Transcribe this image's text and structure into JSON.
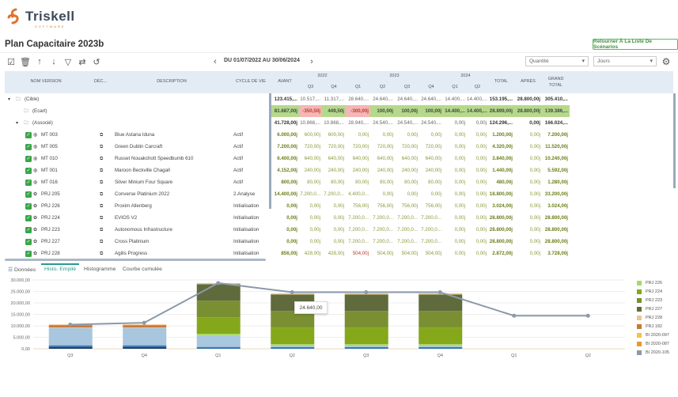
{
  "app": {
    "logo_text": "Triskell",
    "logo_sub": "SOFTWARE",
    "title": "Plan Capacitaire 2023b",
    "back_button": "Retourner À La Liste De Scénarios"
  },
  "toolbar": {
    "period": "DU 01/07/2022 AU 30/06/2024",
    "measure": "Quantité",
    "unit": "Jours"
  },
  "columns": {
    "name": "NOM VERSION",
    "dec": "DÉC...",
    "description": "DESCRIPTION",
    "cycle": "CYCLE DE VIE",
    "avant": "AVANT",
    "y2022": "2022",
    "y2023": "2023",
    "y2024": "2024",
    "q1": "Q1",
    "q2": "Q2",
    "q3": "Q3",
    "q4": "Q4",
    "total": "TOTAL",
    "apres": "APRÈS",
    "grand_total": "GRAND TOTAL"
  },
  "rows": [
    {
      "type": "group",
      "level": 0,
      "expanded": true,
      "name": "(Cible)",
      "values": [
        "123.415,...",
        "10.517,...",
        "11.317,...",
        "28.640,...",
        "24.640,...",
        "24.640,...",
        "24.640,...",
        "14.400,...",
        "14.400,...",
        "153.195,...",
        "28.800,00j",
        "305.410,..."
      ]
    },
    {
      "type": "ecart",
      "level": 1,
      "name": "(Ecart)",
      "values": [
        "81.687,00j",
        "-350,50j",
        "449,50j",
        "-300,00j",
        "100,00j",
        "100,00j",
        "100,00j",
        "14.400,...",
        "14.400,...",
        "28.899,00j",
        "28.800,00j",
        "139.386,..."
      ],
      "negative": [
        1,
        3
      ]
    },
    {
      "type": "group",
      "level": 1,
      "expanded": true,
      "name": "(Associé)",
      "values": [
        "41.728,00j",
        "10.868,...",
        "10.868,...",
        "28.940,...",
        "24.540,...",
        "24.540,...",
        "24.540,...",
        "0,00j",
        "0,00j",
        "124.296,...",
        "0,00j",
        "166.024,..."
      ]
    },
    {
      "type": "item",
      "kind": "globe",
      "name": "MT 003",
      "description": "Blue Astana Iduna",
      "cycle": "Actif",
      "values": [
        "6.000,00j",
        "600,00j",
        "600,00j",
        "0,00j",
        "0,00j",
        "0,00j",
        "0,00j",
        "0,00j",
        "0,00j",
        "1.200,00j",
        "0,00j",
        "7.200,00j"
      ]
    },
    {
      "type": "item",
      "kind": "globe",
      "name": "MT 005",
      "description": "Green Dublin Carcraft",
      "cycle": "Actif",
      "values": [
        "7.200,00j",
        "720,00j",
        "720,00j",
        "720,00j",
        "720,00j",
        "720,00j",
        "720,00j",
        "0,00j",
        "0,00j",
        "4.320,00j",
        "0,00j",
        "11.520,00j"
      ]
    },
    {
      "type": "item",
      "kind": "globe",
      "name": "MT 010",
      "description": "Russet Nouakchott Speedbumb 610",
      "cycle": "Actif",
      "values": [
        "6.400,00j",
        "640,00j",
        "640,00j",
        "640,00j",
        "640,00j",
        "640,00j",
        "640,00j",
        "0,00j",
        "0,00j",
        "3.840,00j",
        "0,00j",
        "10.240,00j"
      ]
    },
    {
      "type": "item",
      "kind": "globe",
      "name": "MT 001",
      "description": "Maroon Beckville Chagall",
      "cycle": "Actif",
      "values": [
        "4.152,00j",
        "240,00j",
        "240,00j",
        "240,00j",
        "240,00j",
        "240,00j",
        "240,00j",
        "0,00j",
        "0,00j",
        "1.440,00j",
        "0,00j",
        "5.592,00j"
      ]
    },
    {
      "type": "item",
      "kind": "globe",
      "name": "MT 016",
      "description": "Silver Minium Four Square",
      "cycle": "Actif",
      "values": [
        "800,00j",
        "80,00j",
        "80,00j",
        "80,00j",
        "80,00j",
        "80,00j",
        "80,00j",
        "0,00j",
        "0,00j",
        "480,00j",
        "0,00j",
        "1.280,00j"
      ]
    },
    {
      "type": "item",
      "kind": "project",
      "name": "PRJ 205",
      "description": "Converse Platinium 2022",
      "cycle": "2.Analyse",
      "values": [
        "14.400,00j",
        "7.200,0...",
        "7.200,0...",
        "4.400,0...",
        "0,00j",
        "0,00j",
        "0,00j",
        "0,00j",
        "0,00j",
        "18.800,00j",
        "0,00j",
        "33.200,00j"
      ]
    },
    {
      "type": "item",
      "kind": "project",
      "name": "PRJ 226",
      "description": "Proxim Allenberg",
      "cycle": "Initialisation",
      "values": [
        "0,00j",
        "0,00j",
        "0,00j",
        "756,00j",
        "756,00j",
        "756,00j",
        "756,00j",
        "0,00j",
        "0,00j",
        "3.024,00j",
        "0,00j",
        "3.024,00j"
      ]
    },
    {
      "type": "item",
      "kind": "project",
      "name": "PRJ 224",
      "description": "EVIOS V2",
      "cycle": "Initialisation",
      "values": [
        "0,00j",
        "0,00j",
        "0,00j",
        "7.200,0...",
        "7.200,0...",
        "7.200,0...",
        "7.200,0...",
        "0,00j",
        "0,00j",
        "28.800,00j",
        "0,00j",
        "28.800,00j"
      ]
    },
    {
      "type": "item",
      "kind": "project",
      "name": "PRJ 223",
      "description": "Autonomous Infrastructure",
      "cycle": "Initialisation",
      "values": [
        "0,00j",
        "0,00j",
        "0,00j",
        "7.200,0...",
        "7.200,0...",
        "7.200,0...",
        "7.200,0...",
        "0,00j",
        "0,00j",
        "28.800,00j",
        "0,00j",
        "28.800,00j"
      ]
    },
    {
      "type": "item",
      "kind": "project",
      "name": "PRJ 227",
      "description": "Cross Platinium",
      "cycle": "Initialisation",
      "values": [
        "0,00j",
        "0,00j",
        "0,00j",
        "7.200,0...",
        "7.200,0...",
        "7.200,0...",
        "7.200,0...",
        "0,00j",
        "0,00j",
        "28.800,00j",
        "0,00j",
        "28.800,00j"
      ]
    },
    {
      "type": "item",
      "kind": "project",
      "name": "PRJ 228",
      "description": "Agilis Progress",
      "cycle": "Initialisation",
      "values": [
        "856,00j",
        "428,00j",
        "428,00j",
        "504,00j",
        "504,00j",
        "504,00j",
        "504,00j",
        "0,00j",
        "0,00j",
        "2.872,00j",
        "0,00j",
        "3.728,00j"
      ],
      "red": [
        3
      ]
    }
  ],
  "tabs": [
    {
      "label": "Données"
    },
    {
      "label": "Histo. Empilé",
      "active": true
    },
    {
      "label": "Histogramme"
    },
    {
      "label": "Courbe cumulée"
    }
  ],
  "tooltip": "24.640,00",
  "chart_data": {
    "type": "bar",
    "stacked": true,
    "categories": [
      "Q3",
      "Q4",
      "Q1",
      "Q2",
      "Q3",
      "Q4",
      "Q1",
      "Q2"
    ],
    "y_ticks": [
      "0,00",
      "5.000,00",
      "10.000,00",
      "15.000,00",
      "20.000,00",
      "25.000,00",
      "30.000,00"
    ],
    "ylim": [
      0,
      30000
    ],
    "grid": true,
    "legend_position": "right",
    "series": [
      {
        "color": "#1f3f6a",
        "values": [
          800,
          800,
          0,
          0,
          0,
          0,
          0,
          0
        ]
      },
      {
        "color": "#3a78b8",
        "values": [
          700,
          700,
          800,
          700,
          700,
          700,
          0,
          0
        ]
      },
      {
        "color": "#a8c6de",
        "values": [
          7500,
          7500,
          5000,
          600,
          600,
          600,
          0,
          0
        ]
      },
      {
        "name": "PRJ 226",
        "color": "#a9d86a",
        "values": [
          0,
          0,
          756,
          756,
          756,
          756,
          0,
          0
        ]
      },
      {
        "name": "PRJ 224",
        "color": "#84a81a",
        "values": [
          0,
          0,
          7200,
          7200,
          7200,
          7200,
          0,
          0
        ]
      },
      {
        "name": "PRJ 223",
        "color": "#7a8f32",
        "values": [
          0,
          0,
          7200,
          7200,
          7200,
          7200,
          0,
          0
        ]
      },
      {
        "name": "PRJ 227",
        "color": "#5f6b3c",
        "values": [
          0,
          0,
          7200,
          7200,
          7200,
          7200,
          0,
          0
        ]
      },
      {
        "name": "PRJ 228",
        "color": "#e8c890",
        "values": [
          300,
          300,
          504,
          504,
          504,
          504,
          0,
          0
        ]
      },
      {
        "name": "PRJ 182",
        "color": "#c8783a",
        "values": [
          900,
          900,
          0,
          0,
          0,
          0,
          0,
          0
        ]
      },
      {
        "name": "BI 2020-097",
        "color": "#f5c050",
        "values": [
          0,
          0,
          0,
          0,
          0,
          0,
          0,
          0
        ]
      },
      {
        "name": "BI 2020-087",
        "color": "#f0962c",
        "values": [
          300,
          300,
          0,
          0,
          0,
          0,
          0,
          0
        ]
      },
      {
        "name": "BI 2020-105",
        "color": "#8a9aab",
        "values": [
          0,
          0,
          0,
          0,
          0,
          0,
          0,
          0
        ]
      }
    ],
    "line": {
      "color": "#8a9aab",
      "values": [
        10517,
        11317,
        28640,
        24640,
        24640,
        24640,
        14400,
        14400
      ]
    }
  }
}
